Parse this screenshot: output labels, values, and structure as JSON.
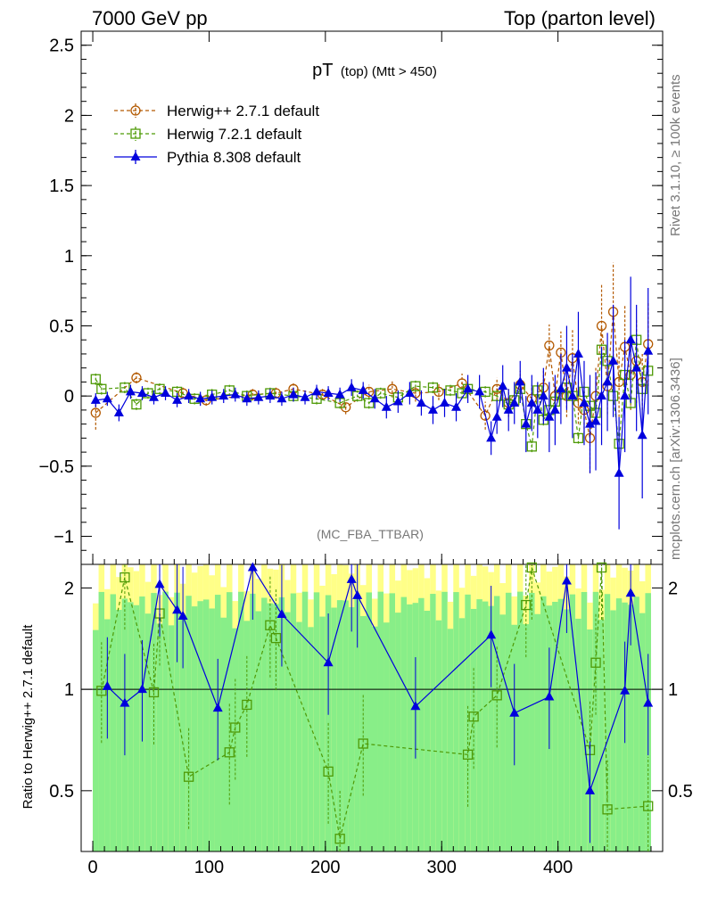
{
  "header": {
    "left_label": "7000 GeV pp",
    "right_label": "Top (parton level)"
  },
  "side_labels": {
    "rivet": "Rivet 3.1.10, ≥ 100k events",
    "mcplots": "mcplots.cern.ch [arXiv:1306.3436]"
  },
  "chart_data": {
    "type": "line",
    "title_main": "pT",
    "title_sub": "(top) (Mtt > 450)",
    "analysis_label": "(MC_FBA_TTBAR)",
    "ratio_ylabel": "Ratio to Herwig++ 2.7.1 default",
    "xlim": [
      -10,
      490
    ],
    "ylim_main": [
      -1.2,
      2.6
    ],
    "ylim_ratio": [
      0.33,
      2.35
    ],
    "x_ticks": [
      0,
      100,
      200,
      300,
      400
    ],
    "y_ticks_main": [
      -1,
      -0.5,
      0,
      0.5,
      1,
      1.5,
      2,
      2.5
    ],
    "y_ticks_ratio": [
      0.5,
      1,
      2
    ],
    "x_bin_width": 5,
    "legend_position": "top-left",
    "series": [
      {
        "name": "Herwig++ 2.7.1 default",
        "color": "#b35900",
        "marker": "open-circle",
        "line": "dashed",
        "x": [
          2.5,
          37.5,
          77.5,
          97.5,
          137.5,
          157.5,
          172.5,
          197.5,
          217.5,
          237.5,
          257.5,
          277.5,
          297.5,
          317.5,
          337.5,
          347.5,
          357.5,
          367.5,
          377.5,
          387.5,
          392.5,
          397.5,
          402.5,
          407.5,
          412.5,
          417.5,
          422.5,
          427.5,
          432.5,
          437.5,
          442.5,
          447.5,
          452.5,
          457.5,
          462.5,
          467.5,
          472.5,
          477.5
        ],
        "y": [
          -0.12,
          0.13,
          0.02,
          -0.03,
          0.01,
          0.02,
          0.05,
          0.01,
          -0.08,
          0.03,
          0.05,
          0.02,
          0.03,
          0.09,
          -0.14,
          0.05,
          -0.05,
          0.08,
          -0.02,
          0.06,
          0.36,
          0.0,
          0.31,
          0.0,
          0.27,
          -0.05,
          -0.1,
          -0.3,
          0.0,
          0.5,
          0.07,
          0.6,
          0.1,
          0.35,
          0.15,
          0.25,
          0.1,
          0.37
        ],
        "yerr": [
          0.12,
          0.04,
          0.04,
          0.04,
          0.04,
          0.04,
          0.04,
          0.04,
          0.05,
          0.05,
          0.06,
          0.06,
          0.06,
          0.07,
          0.1,
          0.08,
          0.1,
          0.1,
          0.1,
          0.12,
          0.15,
          0.1,
          0.15,
          0.15,
          0.2,
          0.15,
          0.2,
          0.25,
          0.2,
          0.3,
          0.2,
          0.35,
          0.25,
          0.3,
          0.25,
          0.3,
          0.2,
          0.3
        ]
      },
      {
        "name": "Herwig 7.2.1 default",
        "color": "#4e9a06",
        "marker": "open-square",
        "line": "dashed",
        "x": [
          2.5,
          7.5,
          27.5,
          37.5,
          47.5,
          57.5,
          72.5,
          87.5,
          102.5,
          117.5,
          132.5,
          152.5,
          172.5,
          192.5,
          212.5,
          227.5,
          237.5,
          247.5,
          262.5,
          277.5,
          292.5,
          307.5,
          317.5,
          322.5,
          337.5,
          347.5,
          357.5,
          362.5,
          367.5,
          372.5,
          377.5,
          382.5,
          387.5,
          392.5,
          397.5,
          402.5,
          407.5,
          412.5,
          417.5,
          422.5,
          427.5,
          432.5,
          437.5,
          442.5,
          447.5,
          452.5,
          457.5,
          462.5,
          467.5,
          472.5,
          477.5
        ],
        "y": [
          0.12,
          0.05,
          0.06,
          -0.06,
          0.02,
          0.05,
          0.03,
          -0.02,
          0.01,
          0.04,
          0.0,
          0.02,
          0.0,
          -0.02,
          -0.05,
          0.0,
          -0.05,
          0.02,
          -0.01,
          0.07,
          0.06,
          0.04,
          0.02,
          0.05,
          0.03,
          0.0,
          -0.06,
          -0.03,
          0.05,
          -0.2,
          -0.36,
          0.04,
          -0.17,
          -0.1,
          -0.04,
          0.01,
          0.06,
          0.0,
          -0.3,
          0.03,
          -0.07,
          -0.12,
          0.33,
          0.25,
          0.0,
          -0.34,
          0.15,
          -0.05,
          0.4,
          0.05,
          0.18
        ]
      },
      {
        "name": "Pythia 8.308 default",
        "color": "#0000dd",
        "marker": "filled-triangle",
        "line": "solid",
        "x": [
          2.5,
          12.5,
          22.5,
          32.5,
          42.5,
          52.5,
          62.5,
          72.5,
          82.5,
          92.5,
          102.5,
          112.5,
          122.5,
          132.5,
          142.5,
          152.5,
          162.5,
          172.5,
          182.5,
          192.5,
          202.5,
          212.5,
          222.5,
          232.5,
          242.5,
          252.5,
          262.5,
          272.5,
          282.5,
          292.5,
          302.5,
          312.5,
          322.5,
          332.5,
          342.5,
          347.5,
          352.5,
          357.5,
          362.5,
          367.5,
          372.5,
          377.5,
          382.5,
          387.5,
          392.5,
          397.5,
          402.5,
          407.5,
          412.5,
          417.5,
          422.5,
          427.5,
          432.5,
          437.5,
          442.5,
          447.5,
          452.5,
          457.5,
          462.5,
          467.5,
          472.5,
          477.5
        ],
        "y": [
          -0.03,
          -0.02,
          -0.12,
          0.03,
          0.02,
          -0.01,
          0.02,
          -0.03,
          0.0,
          -0.02,
          -0.01,
          0.0,
          0.01,
          -0.02,
          -0.01,
          0.0,
          -0.02,
          0.01,
          -0.01,
          0.03,
          0.02,
          0.01,
          0.06,
          0.04,
          -0.02,
          -0.08,
          -0.04,
          0.02,
          -0.05,
          -0.1,
          -0.05,
          -0.08,
          0.05,
          0.03,
          -0.3,
          -0.15,
          0.07,
          -0.1,
          -0.05,
          0.1,
          -0.2,
          -0.05,
          -0.1,
          0.0,
          -0.15,
          -0.1,
          0.05,
          0.2,
          0.0,
          0.3,
          -0.05,
          -0.2,
          -0.18,
          0.0,
          0.1,
          0.25,
          -0.55,
          0.0,
          0.4,
          0.2,
          -0.28,
          0.32
        ],
        "yerr": [
          0.05,
          0.05,
          0.06,
          0.05,
          0.05,
          0.05,
          0.05,
          0.05,
          0.05,
          0.05,
          0.05,
          0.05,
          0.05,
          0.05,
          0.05,
          0.05,
          0.05,
          0.05,
          0.05,
          0.05,
          0.05,
          0.05,
          0.06,
          0.06,
          0.07,
          0.08,
          0.08,
          0.08,
          0.09,
          0.1,
          0.1,
          0.1,
          0.1,
          0.12,
          0.12,
          0.12,
          0.15,
          0.15,
          0.15,
          0.15,
          0.2,
          0.2,
          0.2,
          0.2,
          0.25,
          0.25,
          0.25,
          0.3,
          0.3,
          0.3,
          0.3,
          0.35,
          0.35,
          0.35,
          0.35,
          0.4,
          0.4,
          0.4,
          0.45,
          0.45,
          0.45,
          0.45
        ]
      }
    ],
    "ratio_series": [
      {
        "name": "Herwig 7.2.1 default",
        "x": [
          7.5,
          27.5,
          52.5,
          57.5,
          82.5,
          117.5,
          122.5,
          132.5,
          152.5,
          157.5,
          202.5,
          212.5,
          232.5,
          322.5,
          327.5,
          347.5,
          372.5,
          377.5,
          427.5,
          432.5,
          437.5,
          442.5,
          477.5
        ],
        "y": [
          0.99,
          2.15,
          0.98,
          1.68,
          0.55,
          0.65,
          0.77,
          0.9,
          1.55,
          1.42,
          0.57,
          0.36,
          0.69,
          0.64,
          0.83,
          0.96,
          1.78,
          2.3,
          0.66,
          1.2,
          2.3,
          0.44,
          0.45
        ]
      },
      {
        "name": "Pythia 8.308 default",
        "x": [
          12.5,
          27.5,
          42.5,
          57.5,
          72.5,
          77.5,
          107.5,
          137.5,
          162.5,
          202.5,
          222.5,
          227.5,
          277.5,
          342.5,
          362.5,
          392.5,
          407.5,
          427.5,
          457.5,
          462.5,
          477.5
        ],
        "y": [
          1.02,
          0.91,
          1.0,
          2.05,
          1.72,
          1.65,
          0.88,
          2.3,
          1.67,
          1.2,
          2.12,
          1.9,
          0.89,
          1.45,
          0.85,
          0.95,
          2.1,
          0.5,
          0.99,
          1.93,
          0.91
        ]
      }
    ]
  }
}
